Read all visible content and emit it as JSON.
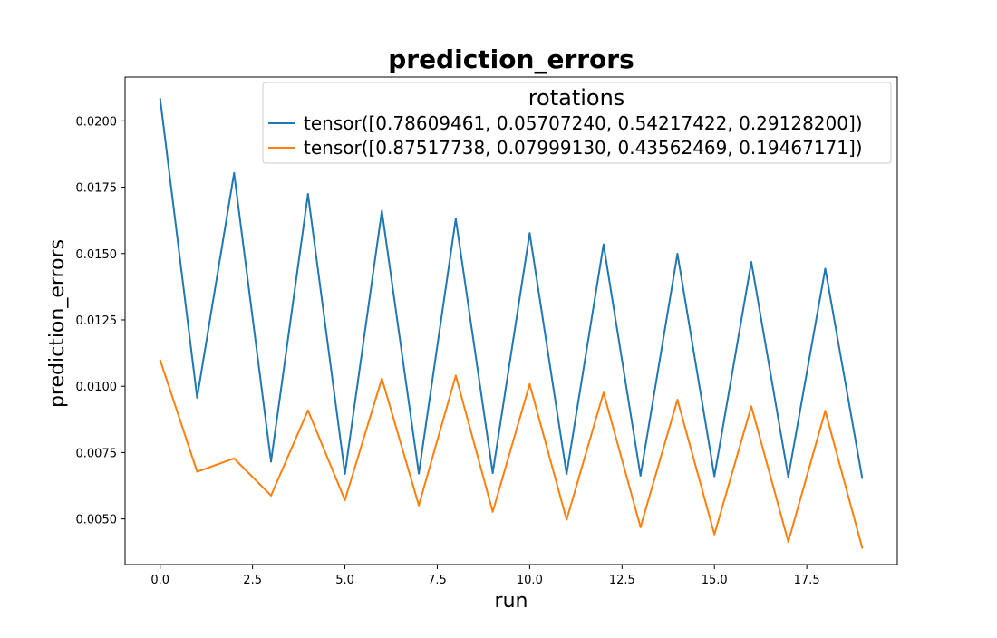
{
  "chart_data": {
    "type": "line",
    "title": "prediction_errors",
    "xlabel": "run",
    "ylabel": "prediction_errors",
    "xlim": [
      -0.95,
      19.95
    ],
    "ylim": [
      0.00328,
      0.02165
    ],
    "grid": false,
    "legend": {
      "title": "rotations",
      "placement": "top-right"
    },
    "x_ticks": [
      0.0,
      2.5,
      5.0,
      7.5,
      10.0,
      12.5,
      15.0,
      17.5
    ],
    "x_tick_labels": [
      "0.0",
      "2.5",
      "5.0",
      "7.5",
      "10.0",
      "12.5",
      "15.0",
      "17.5"
    ],
    "y_ticks": [
      0.005,
      0.0075,
      0.01,
      0.0125,
      0.015,
      0.0175,
      0.02
    ],
    "y_tick_labels": [
      "0.0050",
      "0.0075",
      "0.0100",
      "0.0125",
      "0.0150",
      "0.0175",
      "0.0200"
    ],
    "x": [
      0,
      1,
      2,
      3,
      4,
      5,
      6,
      7,
      8,
      9,
      10,
      11,
      12,
      13,
      14,
      15,
      16,
      17,
      18,
      19
    ],
    "series": [
      {
        "name": "tensor([0.78609461, 0.05707240, 0.54217422, 0.29128200])",
        "color": "#1f77b4",
        "values": [
          0.02083,
          0.00957,
          0.01803,
          0.00716,
          0.01724,
          0.0067,
          0.01661,
          0.00671,
          0.01631,
          0.00673,
          0.01577,
          0.00669,
          0.01534,
          0.00663,
          0.01499,
          0.00661,
          0.01468,
          0.00658,
          0.01443,
          0.00654
        ]
      },
      {
        "name": "tensor([0.87517738, 0.07999130, 0.43562469, 0.19467171])",
        "color": "#ff7f0e",
        "values": [
          0.01098,
          0.00678,
          0.00728,
          0.00588,
          0.00909,
          0.00571,
          0.01029,
          0.00551,
          0.0104,
          0.00527,
          0.01008,
          0.00497,
          0.00976,
          0.00469,
          0.00949,
          0.00442,
          0.00924,
          0.00414,
          0.00907,
          0.00391
        ]
      }
    ]
  }
}
